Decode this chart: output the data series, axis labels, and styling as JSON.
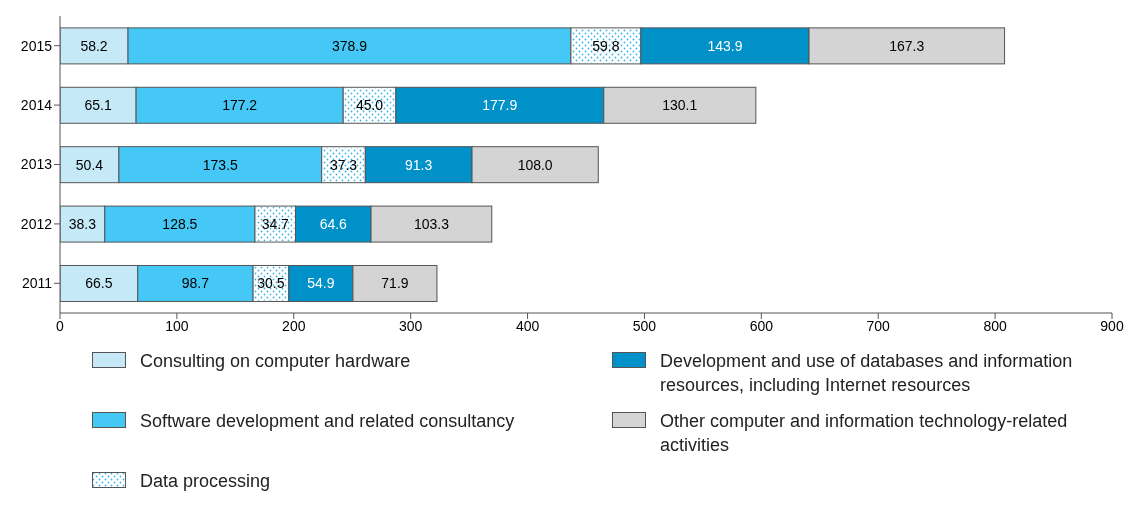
{
  "chart_data": {
    "type": "bar",
    "orientation": "horizontal",
    "stacked": true,
    "categories": [
      "2015",
      "2014",
      "2013",
      "2012",
      "2011"
    ],
    "series": [
      {
        "name": "Consulting on computer hardware",
        "color": "#c6e9f8",
        "values": [
          58.2,
          65.1,
          50.4,
          38.3,
          66.5
        ],
        "value_labels": [
          "58.2",
          "65.1",
          "50.4",
          "38.3",
          "66.5"
        ]
      },
      {
        "name": "Software development and related consultancy",
        "color": "#45c8f5",
        "values": [
          378.9,
          177.2,
          173.5,
          128.5,
          98.7
        ],
        "value_labels": [
          "378.9",
          "177.2",
          "173.5",
          "128.5",
          "98.7"
        ]
      },
      {
        "name": "Data processing",
        "color": "#ffffff",
        "values": [
          59.8,
          45.0,
          37.3,
          34.7,
          30.5
        ],
        "value_labels": [
          "59.8",
          "45.0",
          "37.3",
          "34.7",
          "30.5"
        ]
      },
      {
        "name": "Development and use of databases and information resources, including Internet resources",
        "color": "#0091c9",
        "values": [
          143.9,
          177.9,
          91.3,
          64.6,
          54.9
        ],
        "value_labels": [
          "143.9",
          "177.9",
          "91.3",
          "64.6",
          "54.9"
        ]
      },
      {
        "name": "Other computer and information technology-related activities",
        "color": "#d4d4d4",
        "values": [
          167.3,
          130.1,
          108.0,
          103.3,
          71.9
        ],
        "value_labels": [
          "167.3",
          "130.1",
          "108.0",
          "103.3",
          "71.9"
        ]
      }
    ],
    "xlim": [
      0,
      900
    ],
    "xticks": [
      0,
      100,
      200,
      300,
      400,
      500,
      600,
      700,
      800,
      900
    ],
    "grid": false,
    "legend": "bottom"
  }
}
